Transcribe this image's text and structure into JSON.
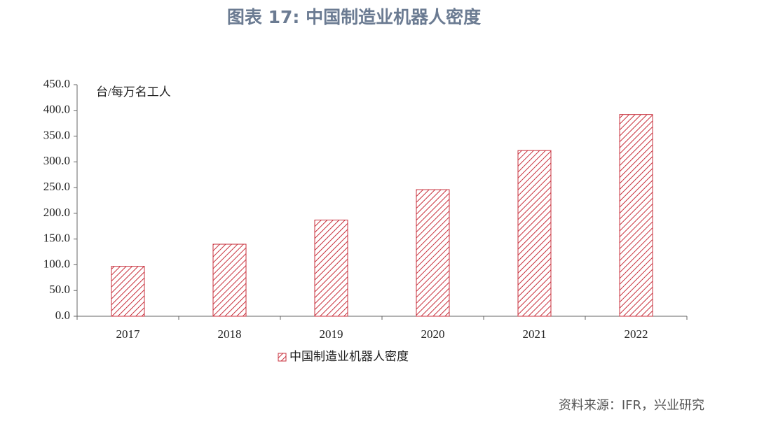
{
  "chart_data": {
    "type": "bar",
    "title": "图表 17: 中国制造业机器人密度",
    "y_axis_label": "台/每万名工人",
    "categories": [
      "2017",
      "2018",
      "2019",
      "2020",
      "2021",
      "2022"
    ],
    "series": [
      {
        "name": "中国制造业机器人密度",
        "color": "#c8303c",
        "values": [
          97,
          140,
          187,
          246,
          322,
          392
        ]
      }
    ],
    "ylim": [
      0,
      450
    ],
    "yticks": [
      {
        "value": 0,
        "label": "0.0"
      },
      {
        "value": 50,
        "label": "50.0"
      },
      {
        "value": 100,
        "label": "100.0"
      },
      {
        "value": 150,
        "label": "150.0"
      },
      {
        "value": 200,
        "label": "200.0"
      },
      {
        "value": 250,
        "label": "250.0"
      },
      {
        "value": 300,
        "label": "300.0"
      },
      {
        "value": 350,
        "label": "350.0"
      },
      {
        "value": 400,
        "label": "400.0"
      },
      {
        "value": 450,
        "label": "450.0"
      }
    ],
    "source": "资料来源：IFR，兴业研究"
  }
}
